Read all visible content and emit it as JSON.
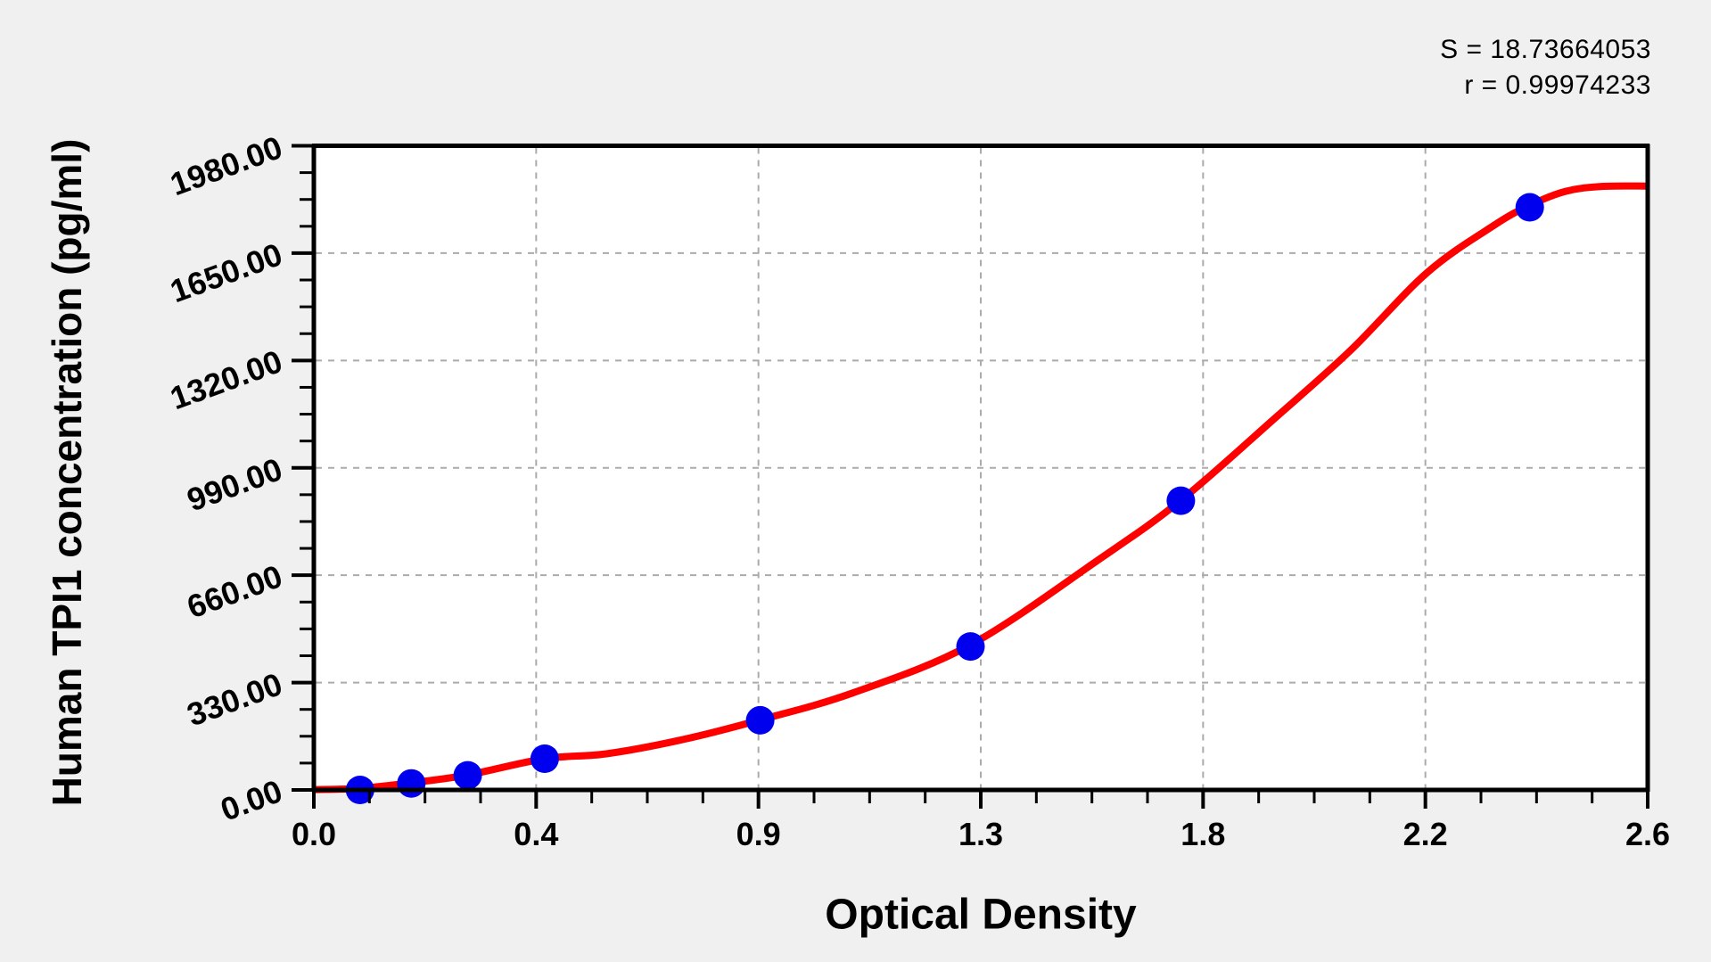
{
  "annotation": {
    "s_label": "S = 18.73664053",
    "r_label": "r = 0.99974233"
  },
  "chart_data": {
    "type": "scatter",
    "title": "",
    "xlabel": "Optical Density",
    "ylabel": "Human TPI1 concentration (pg/ml)",
    "xlim": [
      0,
      2.6
    ],
    "ylim": [
      0,
      1980
    ],
    "x_tick_labels": [
      "0.0",
      "0.4",
      "0.9",
      "1.3",
      "1.8",
      "2.2",
      "2.6"
    ],
    "y_tick_labels": [
      "0.00",
      "330.00",
      "660.00",
      "990.00",
      "1320.00",
      "1650.00",
      "1980.00"
    ],
    "x_minor_divisions": 4,
    "y_minor_divisions": 4,
    "grid": "dashed lines at major ticks",
    "legend_position": "none",
    "series": [
      {
        "name": "standard-points",
        "type": "scatter",
        "x_key": "optical_density",
        "y_key": "concentration_pg_ml",
        "points": [
          [
            0.09,
            0
          ],
          [
            0.19,
            20
          ],
          [
            0.3,
            45
          ],
          [
            0.45,
            96
          ],
          [
            0.87,
            214
          ],
          [
            1.28,
            441
          ],
          [
            1.69,
            889
          ],
          [
            2.37,
            1791
          ]
        ]
      },
      {
        "name": "fitted-standard-curve",
        "type": "line",
        "points": [
          [
            0.0,
            1
          ],
          [
            0.09,
            5
          ],
          [
            0.19,
            22
          ],
          [
            0.3,
            46
          ],
          [
            0.45,
            96
          ],
          [
            0.57,
            111
          ],
          [
            0.72,
            155
          ],
          [
            0.87,
            215
          ],
          [
            1.05,
            298
          ],
          [
            1.28,
            446
          ],
          [
            1.53,
            708
          ],
          [
            1.69,
            890
          ],
          [
            1.87,
            1138
          ],
          [
            2.02,
            1350
          ],
          [
            2.17,
            1590
          ],
          [
            2.3,
            1735
          ],
          [
            2.37,
            1797
          ],
          [
            2.44,
            1840
          ],
          [
            2.51,
            1855
          ],
          [
            2.6,
            1856
          ]
        ]
      }
    ],
    "stats": {
      "S": 18.73664053,
      "r": 0.99974233
    }
  },
  "style": {
    "background": "#F0F0F0",
    "plot_background": "#FFFFFF",
    "axis_color": "#000000",
    "grid_color": "#ABABAB",
    "curve_color": "#FF0000",
    "point_color": "#0000EE"
  }
}
